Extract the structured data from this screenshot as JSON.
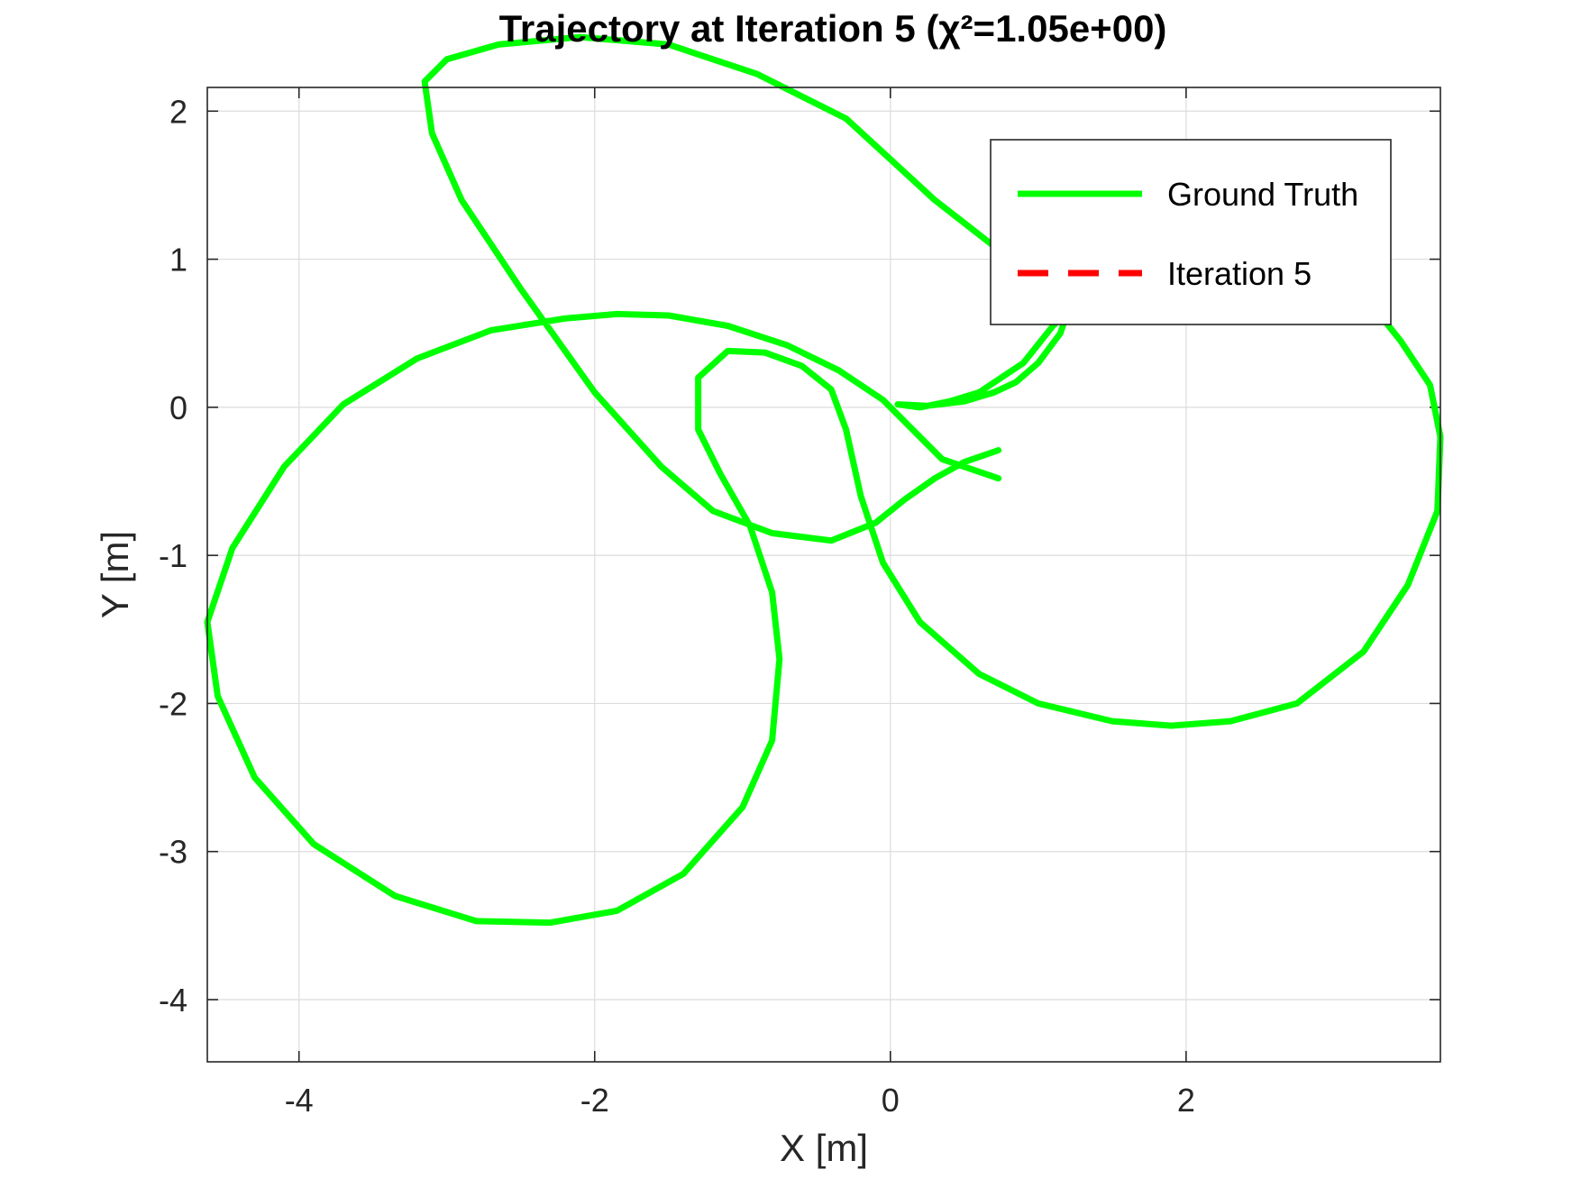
{
  "chart_data": {
    "type": "line",
    "title": "Trajectory at Iteration 5 (χ²=1.05e+00)",
    "xlabel": "X [m]",
    "ylabel": "Y [m]",
    "xlim": [
      -4.62,
      3.72
    ],
    "ylim": [
      -4.42,
      2.16
    ],
    "xticks": [
      -4,
      -2,
      0,
      2
    ],
    "yticks": [
      -4,
      -3,
      -2,
      -1,
      0,
      1,
      2
    ],
    "grid": true,
    "legend_position": "top-right",
    "series": [
      {
        "name": "Ground Truth",
        "color": "#00ff00",
        "style": "solid",
        "x": [
          0.73,
          0.35,
          0.15,
          -0.05,
          -0.35,
          -0.7,
          -1.1,
          -1.5,
          -1.85,
          -2.2,
          -2.7,
          -3.2,
          -3.7,
          -4.1,
          -4.45,
          -4.62,
          -4.55,
          -4.3,
          -3.9,
          -3.35,
          -2.8,
          -2.3,
          -1.85,
          -1.4,
          -1.0,
          -0.8,
          -0.75,
          -0.8,
          -0.95,
          -1.15,
          -1.3,
          -1.3,
          -1.1,
          -0.85,
          -0.6,
          -0.4,
          -0.3,
          -0.2,
          -0.05,
          0.2,
          0.6,
          1.0,
          1.5,
          1.9,
          2.3,
          2.75,
          3.2,
          3.5,
          3.7,
          3.72,
          3.65,
          3.45,
          3.25,
          3.0,
          2.5,
          1.9,
          1.35,
          1.1,
          0.9,
          0.6,
          0.4,
          0.2,
          0.05,
          0.25,
          0.5,
          0.7,
          0.85,
          1.0,
          1.15,
          1.2,
          1.2,
          1.05,
          0.75,
          0.3,
          -0.3,
          -0.9,
          -1.5,
          -2.1,
          -2.65,
          -3.0,
          -3.15,
          -3.1,
          -2.9,
          -2.5,
          -2.0,
          -1.55,
          -1.2,
          -0.8,
          -0.4,
          -0.1,
          0.1,
          0.3,
          0.5,
          0.73
        ],
        "y": [
          -0.48,
          -0.35,
          -0.15,
          0.05,
          0.25,
          0.42,
          0.55,
          0.62,
          0.63,
          0.6,
          0.52,
          0.33,
          0.02,
          -0.4,
          -0.95,
          -1.45,
          -1.95,
          -2.5,
          -2.95,
          -3.3,
          -3.47,
          -3.48,
          -3.4,
          -3.15,
          -2.7,
          -2.25,
          -1.7,
          -1.25,
          -0.8,
          -0.45,
          -0.15,
          0.2,
          0.38,
          0.37,
          0.28,
          0.12,
          -0.15,
          -0.6,
          -1.05,
          -1.45,
          -1.8,
          -2.0,
          -2.12,
          -2.15,
          -2.12,
          -2.0,
          -1.65,
          -1.2,
          -0.7,
          -0.2,
          0.15,
          0.45,
          0.7,
          0.92,
          1.1,
          1.05,
          0.8,
          0.55,
          0.3,
          0.1,
          0.04,
          0.0,
          0.02,
          0.01,
          0.04,
          0.1,
          0.17,
          0.3,
          0.5,
          0.65,
          0.7,
          0.8,
          1.05,
          1.4,
          1.95,
          2.25,
          2.45,
          2.5,
          2.45,
          2.35,
          2.2,
          1.85,
          1.4,
          0.8,
          0.1,
          -0.4,
          -0.7,
          -0.85,
          -0.9,
          -0.78,
          -0.62,
          -0.48,
          -0.37,
          -0.29
        ],
        "legend": "Ground Truth"
      },
      {
        "name": "Iteration 5",
        "color": "#ff0000",
        "style": "dashed",
        "x": [],
        "y": [],
        "legend": "Iteration 5"
      }
    ]
  }
}
